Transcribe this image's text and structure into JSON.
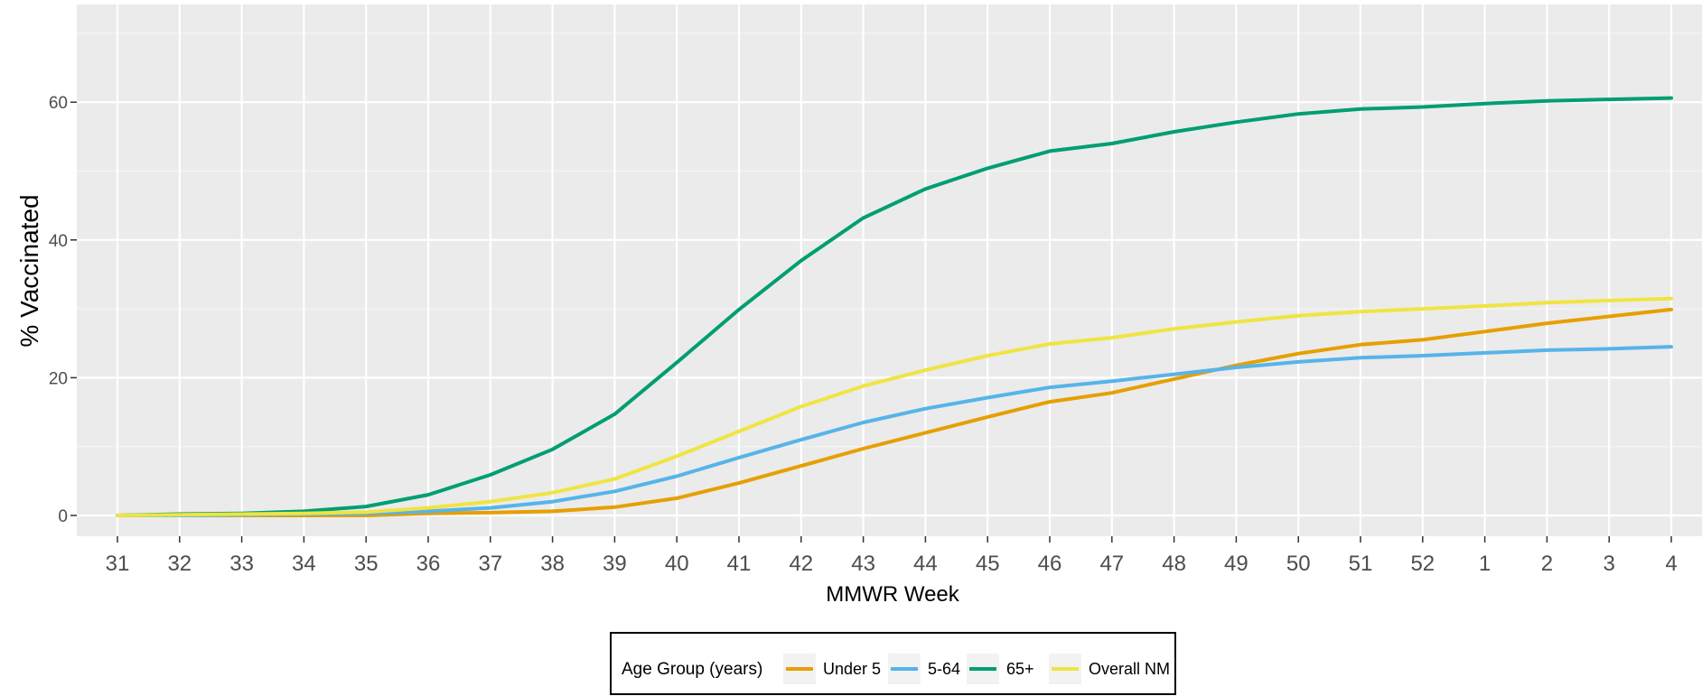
{
  "chart_data": {
    "type": "line",
    "xlabel": "MMWR Week",
    "ylabel": "% Vaccinated",
    "categories": [
      "31",
      "32",
      "33",
      "34",
      "35",
      "36",
      "37",
      "38",
      "39",
      "40",
      "41",
      "42",
      "43",
      "44",
      "45",
      "46",
      "47",
      "48",
      "49",
      "50",
      "51",
      "52",
      "1",
      "2",
      "3",
      "4"
    ],
    "ylim": [
      -2,
      74
    ],
    "yticks": [
      0,
      20,
      40,
      60
    ],
    "grid": true,
    "legend": {
      "title": "Age Group (years)",
      "position": "bottom"
    },
    "series": [
      {
        "name": "Under 5",
        "color": "#E69F00",
        "values": [
          0,
          0,
          0,
          0,
          0,
          0.3,
          0.4,
          0.6,
          1.2,
          2.5,
          4.7,
          7.2,
          9.7,
          12.0,
          14.3,
          16.5,
          17.8,
          19.8,
          21.8,
          23.5,
          24.8,
          25.5,
          26.7,
          27.9,
          28.9,
          29.9
        ]
      },
      {
        "name": "5-64",
        "color": "#56B4E9",
        "values": [
          0,
          0,
          0.1,
          0.2,
          0.3,
          0.6,
          1.1,
          2.0,
          3.5,
          5.7,
          8.4,
          11.0,
          13.5,
          15.5,
          17.1,
          18.6,
          19.5,
          20.5,
          21.5,
          22.3,
          22.9,
          23.2,
          23.6,
          24.0,
          24.2,
          24.5
        ]
      },
      {
        "name": "65+",
        "color": "#009E73",
        "values": [
          0,
          0.2,
          0.3,
          0.6,
          1.3,
          3.0,
          5.9,
          9.6,
          14.7,
          22.2,
          29.9,
          37.0,
          43.2,
          47.4,
          50.4,
          52.9,
          54.0,
          55.7,
          57.1,
          58.3,
          59.0,
          59.3,
          59.8,
          60.2,
          60.4,
          60.6
        ]
      },
      {
        "name": "Overall NM",
        "color": "#F0E442",
        "values": [
          0,
          0.1,
          0.2,
          0.3,
          0.5,
          1.1,
          2.0,
          3.3,
          5.3,
          8.6,
          12.2,
          15.8,
          18.8,
          21.1,
          23.2,
          24.9,
          25.8,
          27.1,
          28.1,
          29.0,
          29.6,
          30.0,
          30.4,
          30.9,
          31.2,
          31.5
        ]
      }
    ]
  }
}
